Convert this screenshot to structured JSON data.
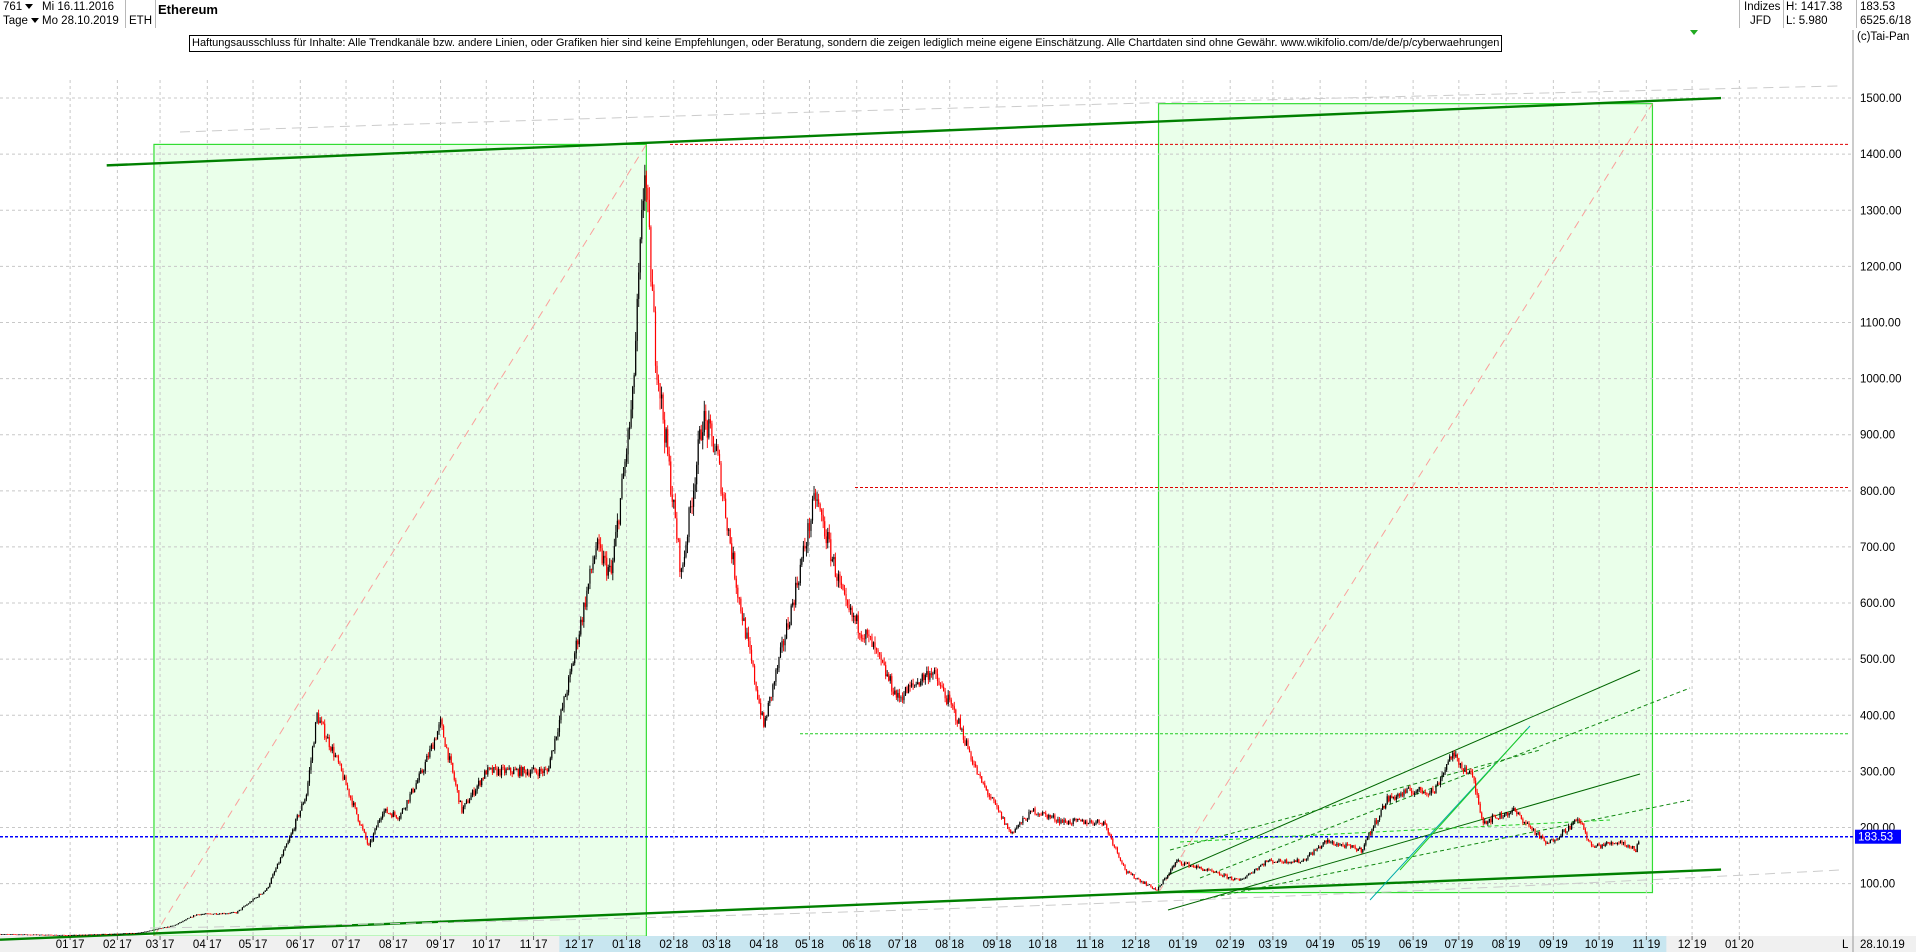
{
  "header": {
    "bar_count": "761",
    "start_date": "Mi 16.11.2016",
    "period": "Tage",
    "end_date": "Mo 28.10.2019",
    "symbol": "ETH",
    "title": "Ethereum",
    "market": "Indizes",
    "source": "JFD",
    "high_label": "H: 1417.38",
    "low_label": "L: 5.980",
    "last_value": "183.53",
    "extra_value": "6525.6/18",
    "copyright": "(c)Tai-Pan"
  },
  "disclaimer": "Haftungsausschluss für Inhalte: Alle Trendkanäle bzw. andere Linien, oder Grafiken hier sind keine Empfehlungen, oder Beratung, sondern die zeigen lediglich meine eigene Einschätzung. Alle Chartdaten sind ohne Gewähr.  www.wikifolio.com/de/de/p/cyberwaehrungen",
  "current_price_label": "183.53",
  "bottom_right_date": "28.10.19",
  "bottom_right_marker": "L",
  "colors": {
    "up_candle": "#000000",
    "down_candle": "#ff0000",
    "trend_line": "#008000",
    "box_fill": "#eaffea",
    "box_border": "#33dd33",
    "price_line": "#0000ff",
    "price_label_bg": "#0000ff"
  },
  "chart_data": {
    "type": "candlestick",
    "title": "Ethereum",
    "y_axis_position": "right",
    "ylim": [
      0,
      1560
    ],
    "y_ticks": [
      100,
      200,
      300,
      400,
      500,
      600,
      700,
      800,
      900,
      1000,
      1100,
      1200,
      1300,
      1400,
      1500
    ],
    "y_tick_labels": [
      "100.00",
      "200.00",
      "300.00",
      "400.00",
      "500.00",
      "600.00",
      "700.00",
      "800.00",
      "900.00",
      "1000.00",
      "1100.00",
      "1200.00",
      "1300.00",
      "1400.00",
      "1500.00"
    ],
    "x_tick_labels": [
      "01 17",
      "02 17",
      "03 17",
      "04 17",
      "05 17",
      "06 17",
      "07 17",
      "08 17",
      "09 17",
      "10 17",
      "11 17",
      "12 17",
      "01 18",
      "02 18",
      "03 18",
      "04 18",
      "05 18",
      "06 18",
      "07 18",
      "08 18",
      "09 18",
      "10 18",
      "11 18",
      "12 18",
      "01 19",
      "02 19",
      "03 19",
      "04 19",
      "05 19",
      "06 19",
      "07 19",
      "08 19",
      "09 19",
      "10 19",
      "11 19",
      "12 19",
      "01 20"
    ],
    "highlighted_x_range": [
      "12 17",
      "11 19"
    ],
    "grid": true,
    "price_anchors": [
      {
        "date": "2016-11-16",
        "value": 10
      },
      {
        "date": "2017-01-01",
        "value": 8
      },
      {
        "date": "2017-02-15",
        "value": 12
      },
      {
        "date": "2017-03-10",
        "value": 25
      },
      {
        "date": "2017-03-25",
        "value": 45
      },
      {
        "date": "2017-04-20",
        "value": 48
      },
      {
        "date": "2017-05-10",
        "value": 90
      },
      {
        "date": "2017-05-25",
        "value": 180
      },
      {
        "date": "2017-06-05",
        "value": 260
      },
      {
        "date": "2017-06-12",
        "value": 400
      },
      {
        "date": "2017-06-25",
        "value": 320
      },
      {
        "date": "2017-07-16",
        "value": 165
      },
      {
        "date": "2017-07-25",
        "value": 230
      },
      {
        "date": "2017-08-05",
        "value": 220
      },
      {
        "date": "2017-08-20",
        "value": 300
      },
      {
        "date": "2017-09-01",
        "value": 385
      },
      {
        "date": "2017-09-15",
        "value": 230
      },
      {
        "date": "2017-10-01",
        "value": 300
      },
      {
        "date": "2017-10-25",
        "value": 300
      },
      {
        "date": "2017-11-10",
        "value": 300
      },
      {
        "date": "2017-11-25",
        "value": 470
      },
      {
        "date": "2017-12-12",
        "value": 700
      },
      {
        "date": "2017-12-22",
        "value": 650
      },
      {
        "date": "2018-01-05",
        "value": 960
      },
      {
        "date": "2018-01-13",
        "value": 1380
      },
      {
        "date": "2018-01-20",
        "value": 1050
      },
      {
        "date": "2018-02-06",
        "value": 650
      },
      {
        "date": "2018-02-20",
        "value": 930
      },
      {
        "date": "2018-03-01",
        "value": 870
      },
      {
        "date": "2018-03-15",
        "value": 620
      },
      {
        "date": "2018-04-01",
        "value": 380
      },
      {
        "date": "2018-04-20",
        "value": 600
      },
      {
        "date": "2018-05-05",
        "value": 790
      },
      {
        "date": "2018-05-25",
        "value": 590
      },
      {
        "date": "2018-06-10",
        "value": 530
      },
      {
        "date": "2018-06-28",
        "value": 430
      },
      {
        "date": "2018-07-20",
        "value": 480
      },
      {
        "date": "2018-08-05",
        "value": 400
      },
      {
        "date": "2018-08-20",
        "value": 290
      },
      {
        "date": "2018-09-10",
        "value": 190
      },
      {
        "date": "2018-09-25",
        "value": 230
      },
      {
        "date": "2018-10-15",
        "value": 210
      },
      {
        "date": "2018-11-10",
        "value": 210
      },
      {
        "date": "2018-11-25",
        "value": 120
      },
      {
        "date": "2018-12-15",
        "value": 88
      },
      {
        "date": "2018-12-28",
        "value": 140
      },
      {
        "date": "2019-01-15",
        "value": 125
      },
      {
        "date": "2019-02-07",
        "value": 105
      },
      {
        "date": "2019-02-25",
        "value": 140
      },
      {
        "date": "2019-03-20",
        "value": 140
      },
      {
        "date": "2019-04-05",
        "value": 175
      },
      {
        "date": "2019-04-28",
        "value": 160
      },
      {
        "date": "2019-05-15",
        "value": 250
      },
      {
        "date": "2019-05-30",
        "value": 265
      },
      {
        "date": "2019-06-15",
        "value": 265
      },
      {
        "date": "2019-06-26",
        "value": 330
      },
      {
        "date": "2019-07-10",
        "value": 290
      },
      {
        "date": "2019-07-17",
        "value": 210
      },
      {
        "date": "2019-08-06",
        "value": 230
      },
      {
        "date": "2019-08-28",
        "value": 170
      },
      {
        "date": "2019-09-18",
        "value": 215
      },
      {
        "date": "2019-09-26",
        "value": 165
      },
      {
        "date": "2019-10-15",
        "value": 175
      },
      {
        "date": "2019-10-25",
        "value": 160
      },
      {
        "date": "2019-10-28",
        "value": 183.53
      }
    ],
    "reference_levels": [
      {
        "value": 1417.38,
        "style": "red-dotted"
      },
      {
        "value": 806,
        "style": "red-dotted"
      },
      {
        "value": 367,
        "style": "green-dotted"
      },
      {
        "value": 183.53,
        "style": "blue-dotted"
      }
    ],
    "trend_lines": [
      {
        "from": [
          "2017-01-25",
          1380
        ],
        "to": [
          "2019-12-20",
          1500
        ],
        "style": "dark-green"
      },
      {
        "from": [
          "2016-11-16",
          0
        ],
        "to": [
          "2019-12-20",
          125
        ],
        "style": "dark-green"
      }
    ],
    "highlight_boxes": [
      {
        "from": [
          "2017-02-25",
          5.98
        ],
        "to": [
          "2018-01-14",
          1417.38
        ]
      },
      {
        "from": [
          "2018-12-16",
          84
        ],
        "to": [
          "2019-11-05",
          1490
        ]
      }
    ]
  }
}
